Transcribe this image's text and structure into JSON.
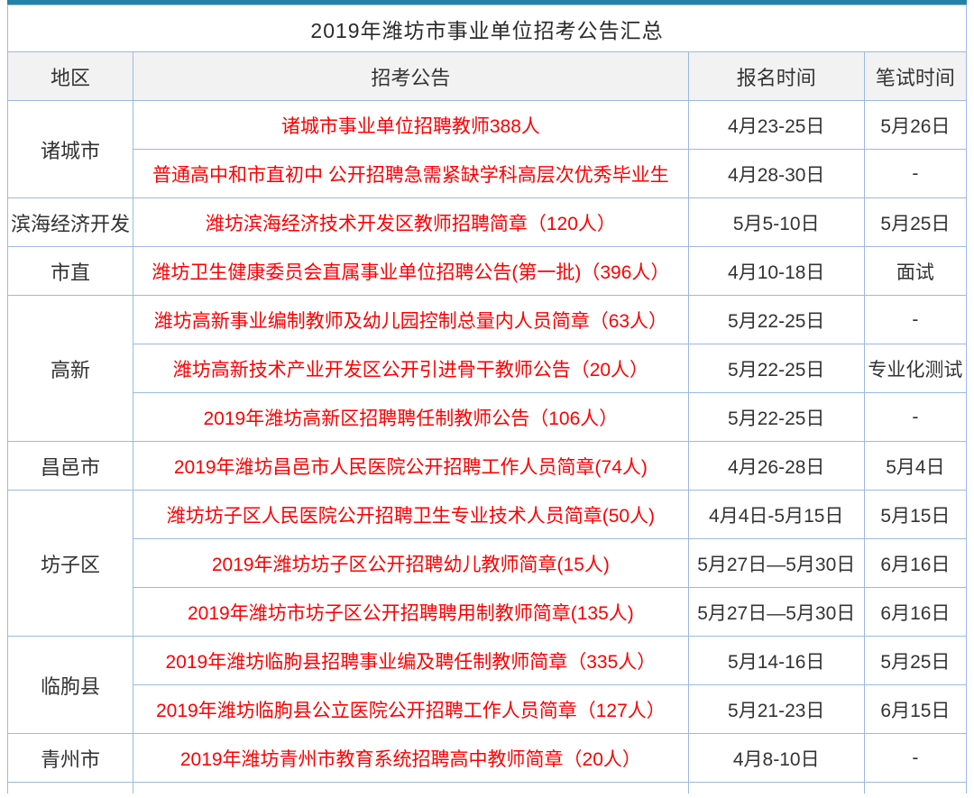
{
  "theme": {
    "accent_top_line_color": "#2383a6",
    "table_border_color": "#9cb9e2",
    "announcement_link_color": "#fe0000",
    "body_text_color": "#333333",
    "header_row_background": "#f2f2f2"
  },
  "table": {
    "title": "2019年潍坊市事业单位招考公告汇总",
    "columns": [
      "地区",
      "招考公告",
      "报名时间",
      "笔试时间"
    ],
    "groups": [
      {
        "region": "诸城市",
        "rows": [
          {
            "announcement": "诸城市事业单位招聘教师388人",
            "signup": "4月23-25日",
            "exam": "5月26日"
          },
          {
            "announcement": "普通高中和市直初中 公开招聘急需紧缺学科高层次优秀毕业生",
            "signup": "4月28-30日",
            "exam": "-"
          }
        ]
      },
      {
        "region": "滨海经济开发",
        "rows": [
          {
            "announcement": "潍坊滨海经济技术开发区教师招聘简章（120人）",
            "signup": "5月5-10日",
            "exam": "5月25日"
          }
        ]
      },
      {
        "region": "市直",
        "rows": [
          {
            "announcement": "潍坊卫生健康委员会直属事业单位招聘公告(第一批)（396人）",
            "signup": "4月10-18日",
            "exam": "面试"
          }
        ]
      },
      {
        "region": "高新",
        "rows": [
          {
            "announcement": "潍坊高新事业编制教师及幼儿园控制总量内人员简章（63人）",
            "signup": "5月22-25日",
            "exam": "-"
          },
          {
            "announcement": "潍坊高新技术产业开发区公开引进骨干教师公告（20人）",
            "signup": "5月22-25日",
            "exam": "专业化测试"
          },
          {
            "announcement": "2019年潍坊高新区招聘聘任制教师公告（106人）",
            "signup": "5月22-25日",
            "exam": "-"
          }
        ]
      },
      {
        "region": "昌邑市",
        "rows": [
          {
            "announcement": "2019年潍坊昌邑市人民医院公开招聘工作人员简章(74人)",
            "signup": "4月26-28日",
            "exam": "5月4日"
          }
        ]
      },
      {
        "region": "坊子区",
        "rows": [
          {
            "announcement": "潍坊坊子区人民医院公开招聘卫生专业技术人员简章(50人)",
            "signup": "4月4日-5月15日",
            "exam": "5月15日"
          },
          {
            "announcement": "2019年潍坊坊子区公开招聘幼儿教师简章(15人)",
            "signup": "5月27日—5月30日",
            "exam": "6月16日"
          },
          {
            "announcement": "2019年潍坊市坊子区公开招聘聘用制教师简章(135人)",
            "signup": "5月27日—5月30日",
            "exam": "6月16日"
          }
        ]
      },
      {
        "region": "临朐县",
        "rows": [
          {
            "announcement": "2019年潍坊临朐县招聘事业编及聘任制教师简章（335人）",
            "signup": "5月14-16日",
            "exam": "5月25日"
          },
          {
            "announcement": "2019年潍坊临朐县公立医院公开招聘工作人员简章（127人）",
            "signup": "5月21-23日",
            "exam": "6月15日"
          }
        ]
      },
      {
        "region": "青州市",
        "rows": [
          {
            "announcement": "2019年潍坊青州市教育系统招聘高中教师简章（20人）",
            "signup": "4月8-10日",
            "exam": "-"
          }
        ]
      }
    ]
  }
}
